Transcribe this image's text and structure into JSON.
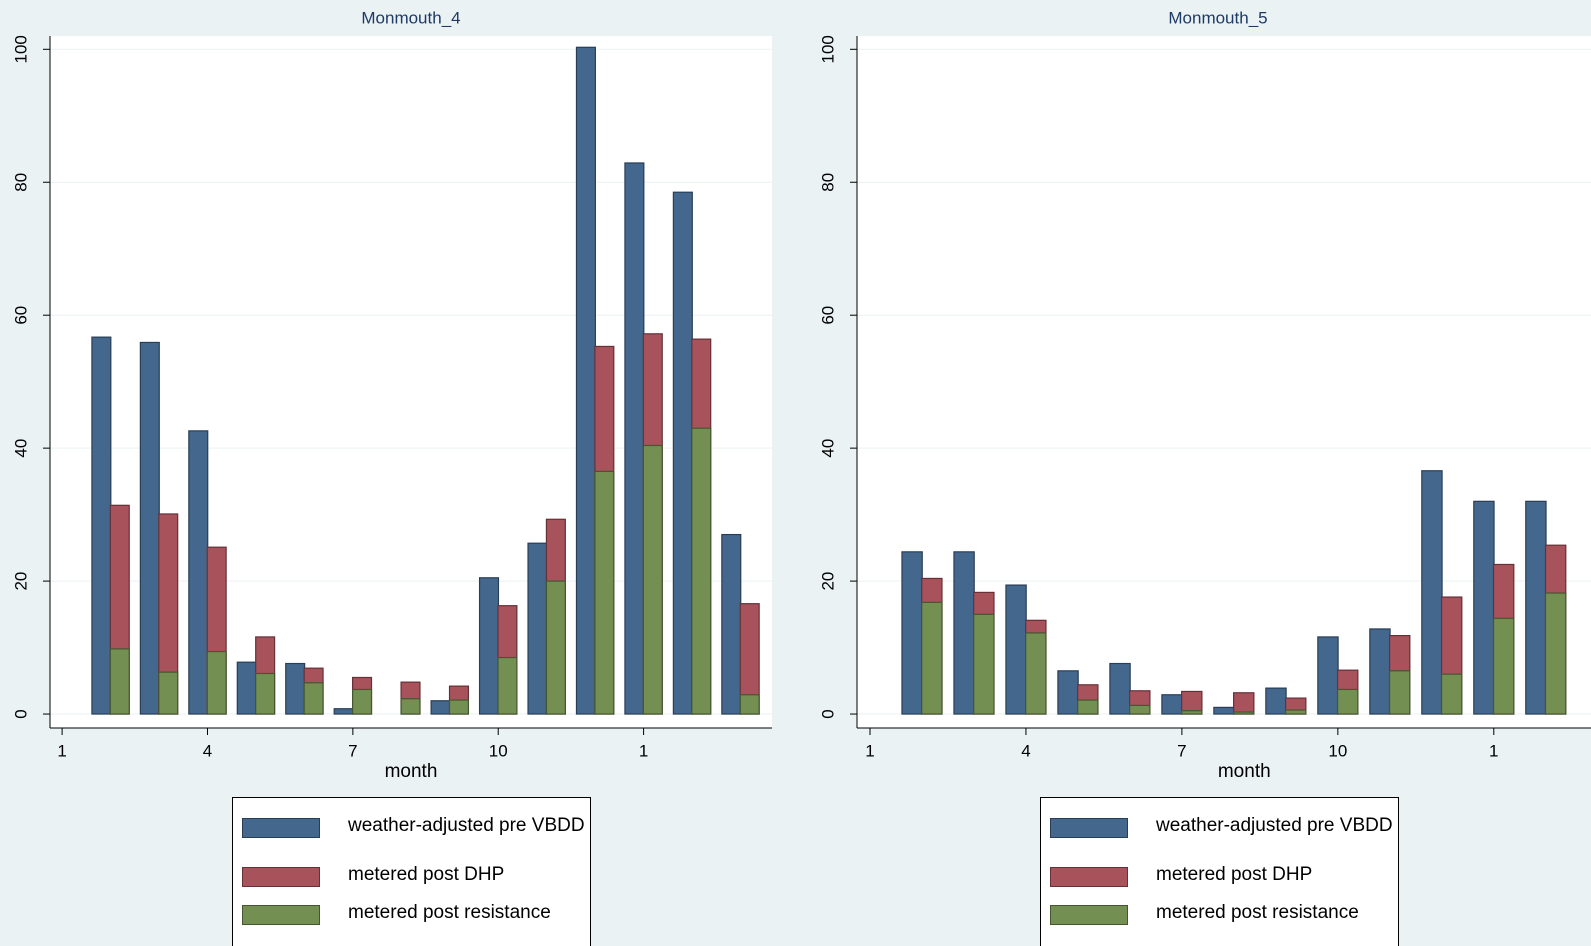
{
  "chart_data": [
    {
      "type": "bar",
      "title": "Monmouth_4",
      "x_label": "month",
      "x": [
        2,
        3,
        4,
        5,
        6,
        7,
        8,
        9,
        10,
        11,
        12,
        13,
        14,
        15
      ],
      "xlim": [
        0.75,
        15.65
      ],
      "xticks": [
        1,
        4,
        7,
        10,
        {
          "value": 13,
          "label": "1"
        }
      ],
      "ylim": [
        -2.1,
        102
      ],
      "yticks": [
        0,
        20,
        40,
        60,
        80,
        100
      ],
      "grid": true,
      "series": [
        {
          "name": "weather-adjusted pre VBDD",
          "color": "#44688d",
          "values": [
            56.7,
            55.9,
            42.6,
            7.8,
            7.6,
            0.8,
            null,
            2.0,
            20.5,
            25.7,
            100.3,
            82.9,
            78.5,
            27.0
          ]
        },
        {
          "name": "metered post DHP",
          "color": "#a8525c",
          "values": [
            31.4,
            30.1,
            25.1,
            11.6,
            6.9,
            5.5,
            4.8,
            4.2,
            16.3,
            29.3,
            55.3,
            57.2,
            56.4,
            16.6
          ]
        },
        {
          "name": "metered post resistance",
          "color": "#748f52",
          "values": [
            9.8,
            6.3,
            9.4,
            6.1,
            4.7,
            3.7,
            2.3,
            2.1,
            8.5,
            20.0,
            36.5,
            40.4,
            43.0,
            2.9
          ]
        }
      ]
    },
    {
      "type": "bar",
      "title": "Monmouth_5",
      "x_label": "month",
      "x": [
        2,
        3,
        4,
        5,
        6,
        7,
        8,
        9,
        10,
        11,
        12,
        13,
        14
      ],
      "xlim": [
        0.75,
        14.87
      ],
      "xticks": [
        1,
        4,
        7,
        10,
        {
          "value": 13,
          "label": "1"
        }
      ],
      "ylim": [
        -2.1,
        102
      ],
      "yticks": [
        0,
        20,
        40,
        60,
        80,
        100
      ],
      "grid": true,
      "series": [
        {
          "name": "weather-adjusted pre VBDD",
          "color": "#44688d",
          "values": [
            24.4,
            24.4,
            19.4,
            6.5,
            7.6,
            2.9,
            1.0,
            3.9,
            11.6,
            12.8,
            36.6,
            32.0,
            32.0
          ]
        },
        {
          "name": "metered post DHP",
          "color": "#a8525c",
          "values": [
            20.4,
            18.3,
            14.1,
            4.4,
            3.5,
            3.4,
            3.2,
            2.4,
            6.6,
            11.8,
            17.6,
            22.5,
            25.4
          ]
        },
        {
          "name": "metered post resistance",
          "color": "#748f52",
          "values": [
            16.8,
            15.0,
            12.2,
            2.1,
            1.3,
            0.5,
            0.3,
            0.6,
            3.7,
            6.5,
            6.0,
            14.4,
            18.2
          ]
        }
      ]
    }
  ]
}
